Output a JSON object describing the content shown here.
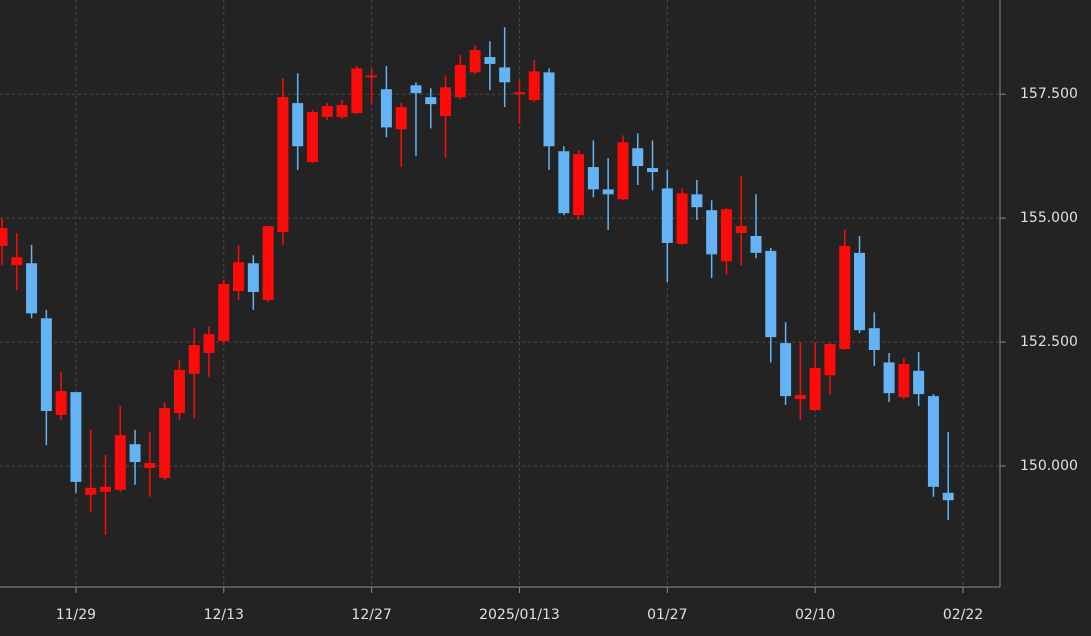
{
  "chart_data": {
    "type": "candlestick",
    "categories": [
      null,
      null,
      null,
      null,
      null,
      "11/29",
      null,
      null,
      null,
      null,
      null,
      null,
      null,
      null,
      null,
      "12/13",
      null,
      null,
      null,
      null,
      null,
      null,
      null,
      null,
      null,
      "12/27",
      null,
      null,
      null,
      null,
      null,
      null,
      null,
      null,
      null,
      "2025/01/13",
      null,
      null,
      null,
      null,
      null,
      null,
      null,
      null,
      null,
      "01/27",
      null,
      null,
      null,
      null,
      null,
      null,
      null,
      null,
      null,
      "02/10",
      null,
      null,
      null,
      null,
      null,
      null,
      null,
      null,
      null,
      "02/22"
    ],
    "open": [
      154.44,
      154.05,
      154.09,
      152.98,
      151.03,
      151.49,
      149.42,
      149.48,
      149.52,
      150.44,
      149.96,
      149.76,
      151.07,
      151.86,
      152.28,
      152.52,
      153.53,
      154.09,
      153.35,
      154.72,
      157.32,
      156.13,
      157.04,
      157.04,
      157.12,
      157.84,
      157.6,
      156.79,
      157.68,
      157.44,
      157.06,
      157.44,
      157.94,
      158.25,
      158.04,
      157.5,
      157.38,
      157.94,
      156.35,
      155.06,
      156.03,
      155.58,
      155.38,
      156.41,
      156.01,
      155.6,
      154.48,
      155.48,
      155.16,
      154.13,
      154.7,
      154.64,
      154.34,
      152.48,
      151.35,
      151.13,
      151.83,
      152.36,
      154.3,
      152.78,
      152.09,
      151.39,
      151.92,
      151.41,
      149.46,
      null
    ],
    "high": [
      155.0,
      154.7,
      154.46,
      153.15,
      151.9,
      151.49,
      150.73,
      150.22,
      151.21,
      150.73,
      150.69,
      151.29,
      152.14,
      152.78,
      152.82,
      153.75,
      154.46,
      154.25,
      154.84,
      157.82,
      157.92,
      157.18,
      157.32,
      157.38,
      158.07,
      158.02,
      158.07,
      157.32,
      157.74,
      157.62,
      157.88,
      158.29,
      158.49,
      158.57,
      158.85,
      157.78,
      158.19,
      158.02,
      156.45,
      156.37,
      156.57,
      156.21,
      156.67,
      156.71,
      156.57,
      155.97,
      155.6,
      155.77,
      155.36,
      155.2,
      155.85,
      155.48,
      154.4,
      152.9,
      152.5,
      152.5,
      152.48,
      154.76,
      154.64,
      153.1,
      152.28,
      152.18,
      152.3,
      151.45,
      150.69,
      null
    ],
    "low": [
      154.05,
      153.55,
      152.98,
      150.42,
      150.93,
      149.46,
      149.07,
      148.61,
      149.48,
      149.62,
      149.38,
      149.72,
      150.93,
      150.97,
      151.8,
      152.48,
      153.35,
      153.15,
      153.31,
      154.46,
      155.97,
      156.11,
      156.98,
      157.0,
      157.1,
      157.3,
      156.63,
      156.03,
      156.25,
      156.81,
      156.21,
      157.4,
      157.9,
      157.58,
      157.24,
      156.9,
      157.34,
      155.97,
      155.06,
      154.96,
      155.42,
      154.76,
      155.36,
      155.67,
      155.56,
      153.71,
      154.46,
      154.96,
      153.79,
      153.85,
      154.05,
      154.19,
      152.09,
      151.23,
      150.93,
      151.11,
      151.43,
      152.34,
      152.68,
      152.02,
      151.29,
      151.35,
      151.21,
      149.38,
      148.91,
      null
    ],
    "close": [
      154.8,
      154.21,
      153.08,
      151.11,
      151.51,
      149.68,
      149.56,
      149.58,
      150.62,
      150.08,
      150.06,
      151.17,
      151.94,
      152.44,
      152.66,
      153.67,
      154.11,
      153.51,
      154.84,
      157.44,
      156.45,
      157.14,
      157.26,
      157.28,
      158.02,
      157.88,
      156.83,
      157.24,
      157.52,
      157.3,
      157.64,
      158.09,
      158.39,
      158.11,
      157.74,
      157.54,
      157.96,
      156.45,
      155.1,
      156.29,
      155.58,
      155.48,
      156.53,
      156.05,
      155.93,
      154.5,
      155.5,
      155.22,
      154.27,
      155.18,
      154.84,
      154.3,
      152.6,
      151.41,
      151.43,
      151.98,
      152.46,
      154.44,
      152.74,
      152.34,
      151.47,
      152.06,
      151.45,
      149.58,
      149.31,
      null
    ],
    "up_color": "#ff0a0a",
    "down_color": "#63b3f5",
    "ylim": [
      147.6,
      159.4
    ],
    "yticks": [
      {
        "value": 150,
        "label": "150.000"
      },
      {
        "value": 152.5,
        "label": "152.500"
      },
      {
        "value": 155,
        "label": "155.000"
      },
      {
        "value": 157.5,
        "label": "157.500"
      }
    ],
    "grid": true
  }
}
